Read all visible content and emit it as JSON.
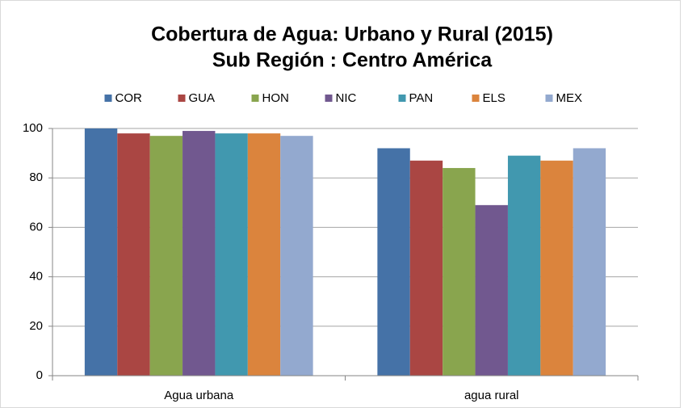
{
  "chart_data": {
    "type": "bar",
    "title": "Cobertura de Agua: Urbano y Rural (2015)",
    "subtitle": "Sub Región : Centro América",
    "categories": [
      "Agua urbana",
      "agua rural"
    ],
    "series": [
      {
        "name": "COR",
        "color": "#4572a7",
        "values": [
          100,
          92
        ]
      },
      {
        "name": "GUA",
        "color": "#aa4643",
        "values": [
          98,
          87
        ]
      },
      {
        "name": "HON",
        "color": "#89a54e",
        "values": [
          97,
          84
        ]
      },
      {
        "name": "NIC",
        "color": "#71588f",
        "values": [
          99,
          69
        ]
      },
      {
        "name": "PAN",
        "color": "#4198af",
        "values": [
          98,
          89
        ]
      },
      {
        "name": "ELS",
        "color": "#db843d",
        "values": [
          98,
          87
        ]
      },
      {
        "name": "MEX",
        "color": "#93a9cf",
        "values": [
          97,
          92
        ]
      }
    ],
    "ylim": [
      0,
      100
    ],
    "yticks": [
      0,
      20,
      40,
      60,
      80,
      100
    ],
    "grid": true,
    "legend": "top"
  }
}
